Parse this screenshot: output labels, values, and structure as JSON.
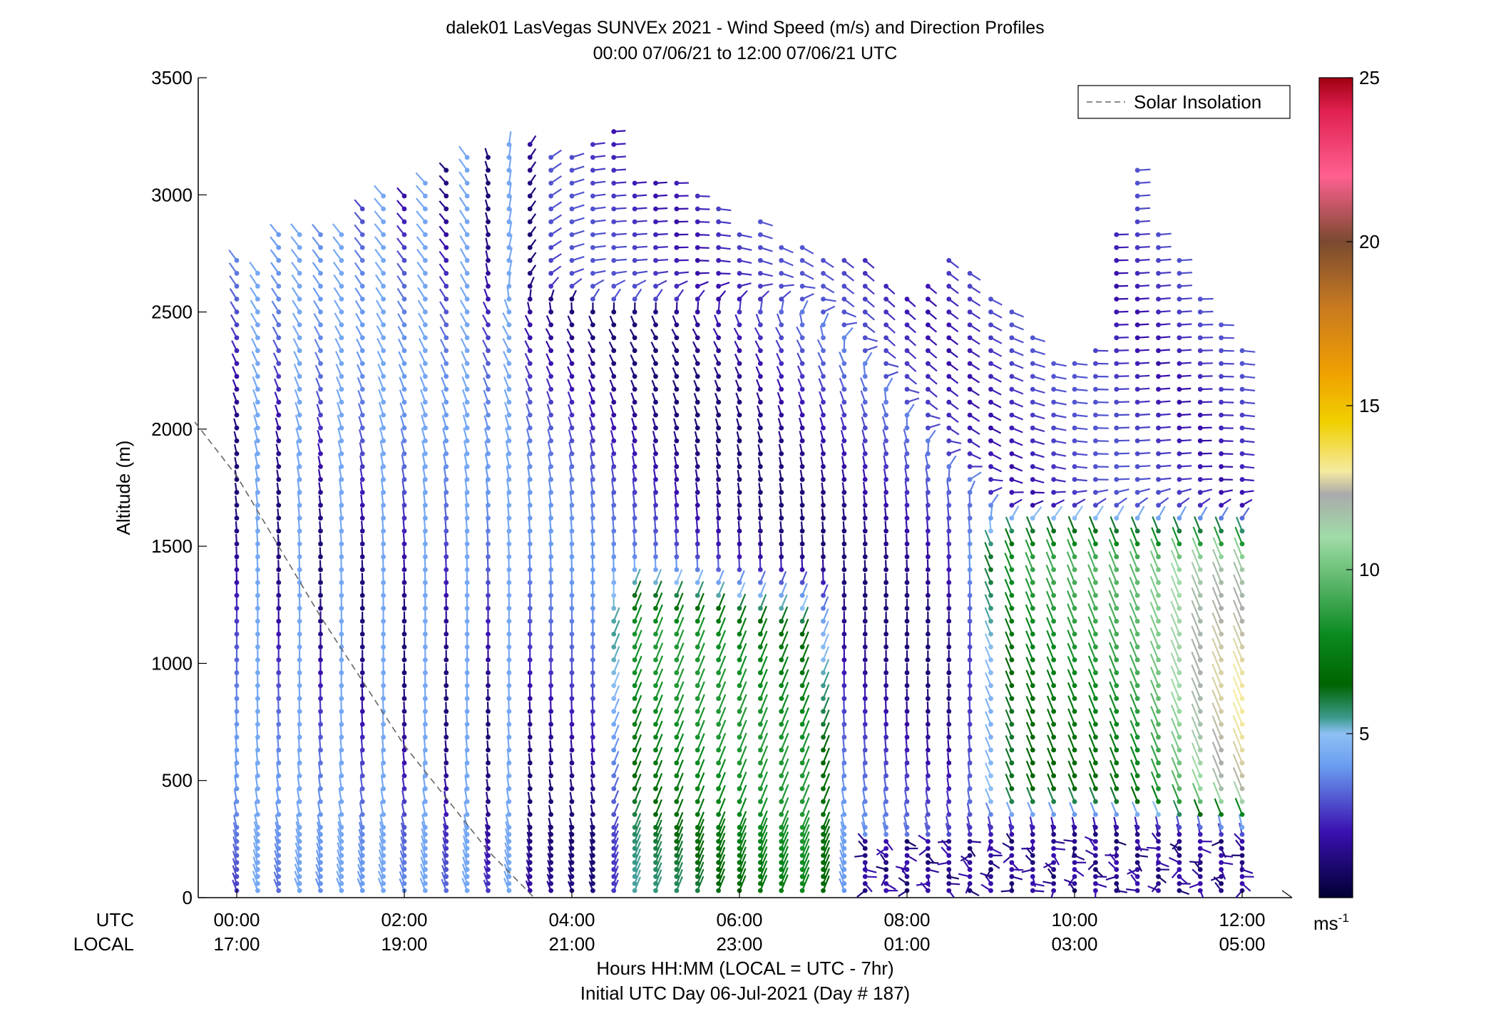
{
  "chart_data": {
    "type": "wind-barb-profile",
    "title": "dalek01 LasVegas SUNVEx 2021 - Wind Speed (m/s) and Direction Profiles",
    "subtitle": "00:00 07/06/21 to 12:00 07/06/21  UTC",
    "ylabel": "Altitude (m)",
    "xlabel": "Hours HH:MM  (LOCAL = UTC - 7hr)",
    "xlabel2": "Initial UTC Day 06-Jul-2021 (Day # 187)",
    "row_label_utc": "UTC",
    "row_label_local": "LOCAL",
    "ylim": [
      0,
      3500
    ],
    "xlim_hours_utc": [
      -0.5,
      12.5
    ],
    "y_ticks": [
      "0",
      "500",
      "1000",
      "1500",
      "2000",
      "2500",
      "3000",
      "3500"
    ],
    "x_ticks_utc": [
      "00:00",
      "02:00",
      "04:00",
      "06:00",
      "08:00",
      "10:00",
      "12:00"
    ],
    "x_ticks_local": [
      "17:00",
      "19:00",
      "21:00",
      "23:00",
      "01:00",
      "03:00",
      "05:00"
    ],
    "legend": {
      "label": "Solar Insolation",
      "line_style": "dashed",
      "color": "#666666",
      "placement": "top-right"
    },
    "colorbar": {
      "range": [
        0,
        25
      ],
      "ticks": [
        "5",
        "10",
        "15",
        "20",
        "25"
      ],
      "unit_base": "ms",
      "unit_exp": "-1",
      "stops": [
        {
          "v": 0,
          "c": "#000033"
        },
        {
          "v": 2,
          "c": "#3a10b0"
        },
        {
          "v": 4,
          "c": "#6a9cf0"
        },
        {
          "v": 5,
          "c": "#8ec0f5"
        },
        {
          "v": 5.5,
          "c": "#3a9a8a"
        },
        {
          "v": 6.5,
          "c": "#006400"
        },
        {
          "v": 8,
          "c": "#0a8a20"
        },
        {
          "v": 11,
          "c": "#a0dca8"
        },
        {
          "v": 12.3,
          "c": "#aaaaaa"
        },
        {
          "v": 13,
          "c": "#f5eaa0"
        },
        {
          "v": 14.5,
          "c": "#f0d000"
        },
        {
          "v": 16,
          "c": "#f0a000"
        },
        {
          "v": 18,
          "c": "#c87a20"
        },
        {
          "v": 20,
          "c": "#7a4a30"
        },
        {
          "v": 22,
          "c": "#ff6090"
        },
        {
          "v": 24,
          "c": "#e02050"
        },
        {
          "v": 25,
          "c": "#a00010"
        }
      ]
    },
    "solar_insolation_curve": {
      "x_hours": [
        -0.5,
        0.0,
        1.0,
        2.0,
        3.0,
        3.55
      ],
      "y_m": [
        2030,
        1800,
        1200,
        650,
        200,
        0
      ]
    },
    "profile_times_hours": [
      0.0,
      0.25,
      0.5,
      0.75,
      1.0,
      1.25,
      1.5,
      1.75,
      2.0,
      2.25,
      2.5,
      2.75,
      3.0,
      3.25,
      3.5,
      3.75,
      4.0,
      4.25,
      4.5,
      4.75,
      5.0,
      5.25,
      5.5,
      5.75,
      6.0,
      6.25,
      6.5,
      6.75,
      7.0,
      7.25,
      7.5,
      7.75,
      8.0,
      8.25,
      8.5,
      8.75,
      9.0,
      9.25,
      9.5,
      9.75,
      10.0,
      10.25,
      10.5,
      10.75,
      11.0,
      11.25,
      11.5,
      11.75,
      12.0
    ],
    "profile_top_m": [
      2720,
      2700,
      2880,
      2880,
      2880,
      2880,
      2960,
      3000,
      3000,
      3050,
      3120,
      3160,
      3200,
      3230,
      3240,
      3180,
      3200,
      3260,
      3300,
      3100,
      3080,
      3060,
      3020,
      2960,
      2880,
      2900,
      2820,
      2790,
      2760,
      2740,
      2720,
      2660,
      2600,
      2610,
      2720,
      2690,
      2580,
      2500,
      2400,
      2320,
      2330,
      2360,
      2880,
      3120,
      2850,
      2720,
      2560,
      2480,
      2360
    ],
    "wind_regimes": [
      {
        "utc_start": "00:00",
        "utc_end": "04:15",
        "alt_range_m": [
          0,
          3100
        ],
        "speed_ms": "1-5",
        "direction": "southeast near surface, southerly aloft"
      },
      {
        "utc_start": "04:15",
        "utc_end": "07:00",
        "alt_range_m": [
          0,
          1400
        ],
        "speed_ms": "5-9",
        "direction": "southerly/southwest"
      },
      {
        "utc_start": "04:00",
        "utc_end": "12:00",
        "alt_range_m": [
          1500,
          3300
        ],
        "speed_ms": "1-4",
        "direction": "westerly/northwest"
      },
      {
        "utc_start": "08:30",
        "utc_end": "12:00",
        "alt_range_m": [
          300,
          1600
        ],
        "speed_ms": "6-11",
        "direction": "south-southeast"
      },
      {
        "utc_start": "07:30",
        "utc_end": "12:00",
        "alt_range_m": [
          0,
          300
        ],
        "speed_ms": "0-3",
        "direction": "variable"
      }
    ]
  }
}
